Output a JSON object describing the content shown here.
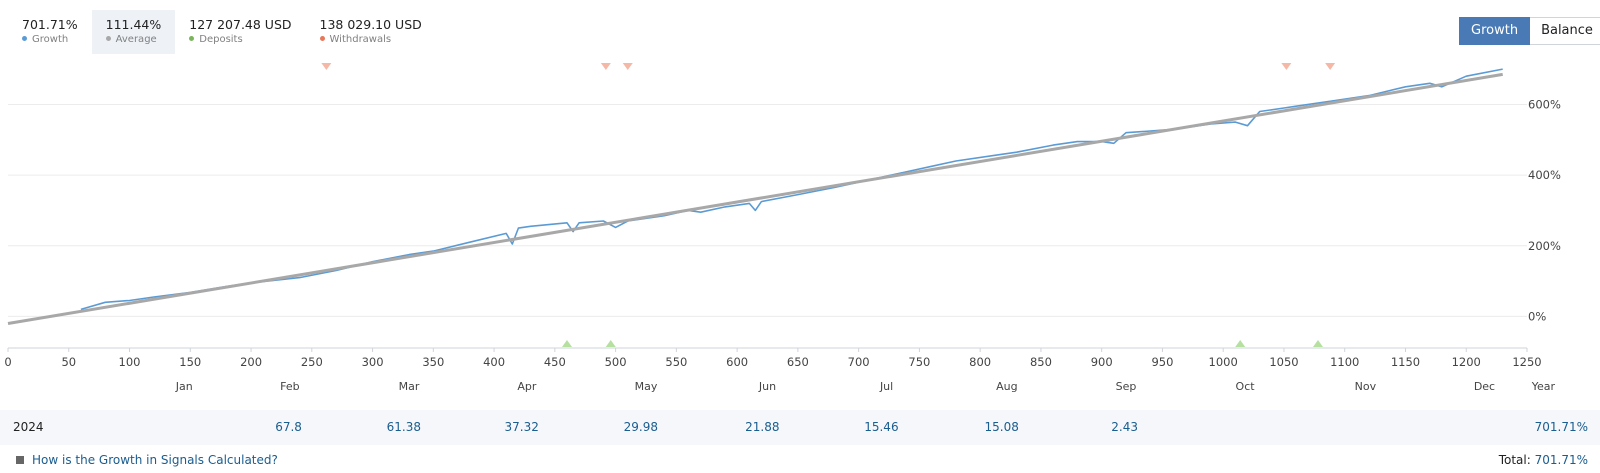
{
  "stats": [
    {
      "value": "701.71%",
      "label": "Growth",
      "color": "#5b9bd5",
      "active": false
    },
    {
      "value": "111.44%",
      "label": "Average",
      "color": "#a8a8a8",
      "active": true
    },
    {
      "value": "127 207.48 USD",
      "label": "Deposits",
      "color": "#7ab55c",
      "active": false
    },
    {
      "value": "138 029.10 USD",
      "label": "Withdrawals",
      "color": "#e8785a",
      "active": false
    }
  ],
  "toggle": {
    "growth_label": "Growth",
    "balance_label": "Balance",
    "active": "Growth"
  },
  "colors": {
    "growth": "#5b9bd5",
    "average": "#a8a8a8",
    "deposit": "#b5e0a0",
    "withdrawal": "#f5b8a6",
    "grid": "#ececec"
  },
  "chart_data": {
    "type": "line",
    "xlim": [
      0,
      1250
    ],
    "ylim": [
      -95,
      740
    ],
    "x_ticks": [
      0,
      50,
      100,
      150,
      200,
      250,
      300,
      350,
      400,
      450,
      500,
      550,
      600,
      650,
      700,
      750,
      800,
      850,
      900,
      950,
      1000,
      1050,
      1100,
      1150,
      1200,
      1250
    ],
    "y_ticks": [
      0,
      200,
      400,
      600
    ],
    "y_tick_labels": [
      "0%",
      "200%",
      "400%",
      "600%"
    ],
    "grid": true,
    "month_labels": [
      {
        "label": "Jan",
        "x": 145
      },
      {
        "label": "Feb",
        "x": 232
      },
      {
        "label": "Mar",
        "x": 330
      },
      {
        "label": "Apr",
        "x": 427
      },
      {
        "label": "May",
        "x": 525
      },
      {
        "label": "Jun",
        "x": 625
      },
      {
        "label": "Jul",
        "x": 723
      },
      {
        "label": "Aug",
        "x": 822
      },
      {
        "label": "Sep",
        "x": 920
      },
      {
        "label": "Oct",
        "x": 1018
      },
      {
        "label": "Nov",
        "x": 1117
      },
      {
        "label": "Dec",
        "x": 1215
      }
    ],
    "year_axis_label": "Year",
    "series": [
      {
        "key": "growth",
        "x": [
          60,
          80,
          100,
          120,
          150,
          180,
          200,
          240,
          270,
          300,
          330,
          350,
          380,
          410,
          415,
          420,
          430,
          460,
          465,
          470,
          490,
          500,
          510,
          540,
          560,
          570,
          590,
          610,
          615,
          620,
          650,
          680,
          700,
          720,
          740,
          760,
          780,
          810,
          830,
          860,
          880,
          900,
          910,
          920,
          940,
          960,
          990,
          1010,
          1020,
          1030,
          1050,
          1060,
          1080,
          1090,
          1120,
          1150,
          1170,
          1180,
          1200,
          1230
        ],
        "y": [
          20,
          40,
          45,
          55,
          68,
          85,
          95,
          110,
          130,
          155,
          175,
          185,
          210,
          235,
          205,
          250,
          255,
          265,
          240,
          265,
          270,
          252,
          270,
          285,
          300,
          295,
          310,
          320,
          300,
          325,
          345,
          365,
          380,
          395,
          410,
          425,
          440,
          455,
          465,
          485,
          495,
          495,
          490,
          520,
          525,
          530,
          545,
          550,
          540,
          580,
          590,
          595,
          605,
          610,
          625,
          650,
          660,
          650,
          680,
          700
        ]
      },
      {
        "key": "average",
        "x": [
          0,
          1230
        ],
        "y": [
          -20,
          685
        ]
      }
    ],
    "deposit_markers": [
      460,
      496,
      1014,
      1078
    ],
    "withdrawal_markers": [
      262,
      492,
      510,
      1052,
      1088
    ]
  },
  "summary": {
    "year": "2024",
    "months": [
      {
        "label": "Jan",
        "value": ""
      },
      {
        "label": "Feb",
        "value": "67.8"
      },
      {
        "label": "Mar",
        "value": "61.38"
      },
      {
        "label": "Apr",
        "value": "37.32"
      },
      {
        "label": "May",
        "value": "29.98"
      },
      {
        "label": "Jun",
        "value": "21.88"
      },
      {
        "label": "Jul",
        "value": "15.46"
      },
      {
        "label": "Aug",
        "value": "15.08"
      },
      {
        "label": "Sep",
        "value": "2.43"
      },
      {
        "label": "Oct",
        "value": ""
      },
      {
        "label": "Nov",
        "value": ""
      },
      {
        "label": "Dec",
        "value": ""
      }
    ],
    "year_total": "701.71%"
  },
  "footer": {
    "help_text": "How is the Growth in Signals Calculated?",
    "total_label": "Total:",
    "total_value": "701.71%"
  }
}
